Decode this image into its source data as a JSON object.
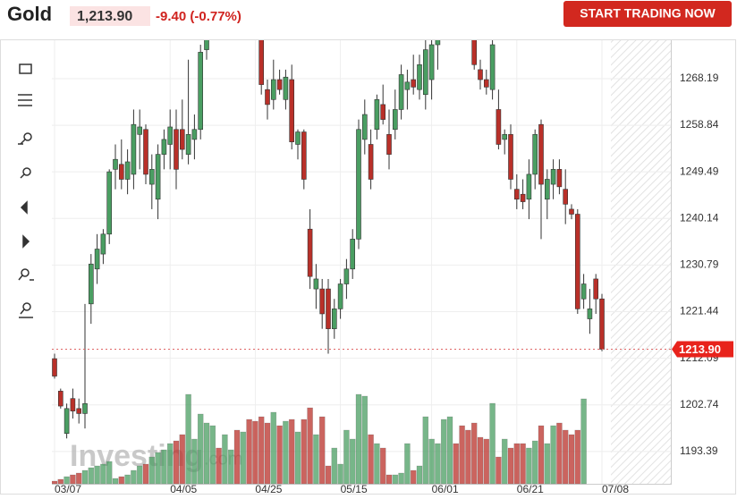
{
  "chart_data": {
    "type": "candlestick",
    "title": "Gold",
    "price": "1,213.90",
    "change": "-9.40 (-0.77%)",
    "button": "START TRADING NOW",
    "watermark": [
      "Investing",
      ".com"
    ],
    "categories": [
      "03/07",
      null,
      null,
      null,
      null,
      null,
      null,
      null,
      null,
      null,
      null,
      null,
      null,
      null,
      null,
      null,
      null,
      null,
      null,
      "04/05",
      null,
      null,
      null,
      null,
      null,
      null,
      null,
      null,
      null,
      null,
      null,
      null,
      null,
      "04/25",
      null,
      null,
      null,
      null,
      null,
      null,
      null,
      null,
      null,
      null,
      null,
      null,
      null,
      "05/15",
      null,
      null,
      null,
      null,
      null,
      null,
      null,
      null,
      null,
      null,
      null,
      null,
      null,
      null,
      "06/01",
      null,
      null,
      null,
      null,
      null,
      null,
      null,
      null,
      null,
      null,
      null,
      null,
      null,
      "06/21",
      null,
      null,
      null,
      null,
      null,
      null,
      null,
      null,
      null,
      null,
      null,
      null,
      null,
      "07/08"
    ],
    "open": [
      1212,
      1205.5,
      1197,
      1204,
      1202,
      1201,
      1223,
      1230,
      1233,
      1237,
      1250,
      1251,
      1248,
      1249,
      1257,
      1258,
      1247,
      1244,
      1253,
      1255,
      1258,
      1258,
      1253,
      1256,
      1258,
      1274,
      1279,
      1282,
      1280,
      1283,
      1286,
      1282,
      1283,
      1281,
      1278,
      1266,
      1264,
      1268,
      1264,
      1268,
      1255,
      1257.5,
      1238,
      1226,
      1226,
      1226,
      1218,
      1222,
      1227,
      1230,
      1236,
      1256,
      1255,
      1258,
      1263,
      1257,
      1258,
      1262,
      1266,
      1268,
      1266,
      1265,
      1268,
      1275,
      1280,
      1283,
      1285,
      1283,
      1282,
      1276,
      1270,
      1268,
      1266,
      1262,
      1256,
      1257,
      1246,
      1245,
      1244,
      1249,
      1259,
      1244,
      1247,
      1250,
      1246,
      1242,
      1241,
      1224,
      1220,
      1228,
      1224
    ],
    "high": [
      1213,
      1206,
      1203,
      1206,
      1204,
      1223,
      1233,
      1237,
      1238,
      1250,
      1255,
      1256,
      1254,
      1262,
      1262,
      1259,
      1253,
      1255,
      1258,
      1262,
      1262,
      1264,
      1272,
      1261,
      1275,
      1280,
      1284,
      1286,
      1285,
      1288,
      1289,
      1285,
      1286,
      1283,
      1280,
      1268,
      1272,
      1270,
      1270,
      1271,
      1258,
      1258,
      1242,
      1231,
      1228,
      1228,
      1224,
      1228,
      1232,
      1238,
      1260,
      1264,
      1258,
      1265,
      1267,
      1262,
      1266,
      1271,
      1270,
      1273,
      1273,
      1278,
      1277,
      1282,
      1286,
      1288,
      1289,
      1287,
      1284,
      1278,
      1272,
      1270,
      1276,
      1266,
      1258,
      1259,
      1249,
      1248,
      1252,
      1258,
      1260,
      1250,
      1252,
      1252,
      1250,
      1243,
      1242,
      1229,
      1226,
      1229,
      1225
    ],
    "low": [
      1208,
      1202,
      1196,
      1200,
      1199,
      1198,
      1219,
      1227,
      1231,
      1235,
      1246,
      1246,
      1245,
      1246,
      1250,
      1247,
      1242,
      1240,
      1250,
      1250,
      1246,
      1252,
      1251,
      1252,
      1256,
      1272,
      1277,
      1279,
      1277,
      1281,
      1280,
      1279,
      1280,
      1277,
      1265,
      1260,
      1262,
      1265,
      1262,
      1254,
      1252,
      1246,
      1226,
      1222,
      1218,
      1213,
      1216,
      1220,
      1224,
      1228,
      1234,
      1253,
      1246,
      1256,
      1259,
      1250,
      1256,
      1260,
      1262,
      1265,
      1264,
      1262,
      1264,
      1270,
      1276,
      1279,
      1281,
      1279,
      1276,
      1270,
      1266,
      1265,
      1264,
      1254,
      1253,
      1246,
      1242,
      1242,
      1240,
      1246,
      1236,
      1240,
      1244,
      1245,
      1239,
      1240,
      1221,
      1222,
      1217,
      1221,
      1213.5
    ],
    "close": [
      1208.5,
      1202.5,
      1202,
      1201.5,
      1201,
      1203,
      1231,
      1234,
      1237,
      1249.5,
      1252,
      1248,
      1251.5,
      1259,
      1258.5,
      1249,
      1250,
      1253,
      1256,
      1258.5,
      1250,
      1254,
      1257,
      1258,
      1273.5,
      1279,
      1282,
      1280,
      1283,
      1286,
      1281,
      1283,
      1281,
      1278,
      1267,
      1263,
      1268,
      1266,
      1268.5,
      1255.5,
      1257.5,
      1248,
      1228.5,
      1228,
      1221,
      1218,
      1222,
      1227,
      1230,
      1236,
      1258,
      1261,
      1248,
      1264,
      1260,
      1253,
      1262,
      1269,
      1267.5,
      1266.5,
      1271,
      1274,
      1275,
      1280,
      1283,
      1285,
      1283,
      1282,
      1277,
      1271,
      1268,
      1266.5,
      1275,
      1255,
      1257,
      1248,
      1244,
      1243.5,
      1249,
      1257,
      1247,
      1248,
      1250,
      1246.5,
      1243,
      1241,
      1222,
      1227,
      1222,
      1224,
      1213.9
    ],
    "volume": [
      3,
      5,
      8,
      10,
      12,
      15,
      18,
      20,
      22,
      25,
      6,
      8,
      10,
      15,
      20,
      22,
      30,
      35,
      38,
      45,
      48,
      55,
      100,
      50,
      78,
      68,
      65,
      40,
      55,
      38,
      60,
      58,
      72,
      70,
      75,
      68,
      80,
      65,
      70,
      72,
      58,
      72,
      85,
      55,
      75,
      20,
      40,
      22,
      60,
      50,
      100,
      98,
      55,
      45,
      40,
      10,
      10,
      12,
      45,
      15,
      20,
      75,
      50,
      45,
      72,
      75,
      45,
      65,
      60,
      68,
      52,
      50,
      90,
      30,
      50,
      40,
      45,
      45,
      40,
      48,
      65,
      45,
      65,
      68,
      60,
      55,
      60,
      95,
      null,
      null,
      null
    ],
    "up_color": "#4a9e62",
    "down_color": "#b93029",
    "last_price": {
      "value": 1213.9,
      "label": "1213.90"
    },
    "ylim": [
      1186.9,
      1275.9
    ],
    "yticks": [
      1193.39,
      1202.74,
      1212.09,
      1221.44,
      1230.79,
      1240.14,
      1249.49,
      1258.84,
      1268.19
    ],
    "volume_lim": [
      0,
      100
    ],
    "grid": true
  }
}
